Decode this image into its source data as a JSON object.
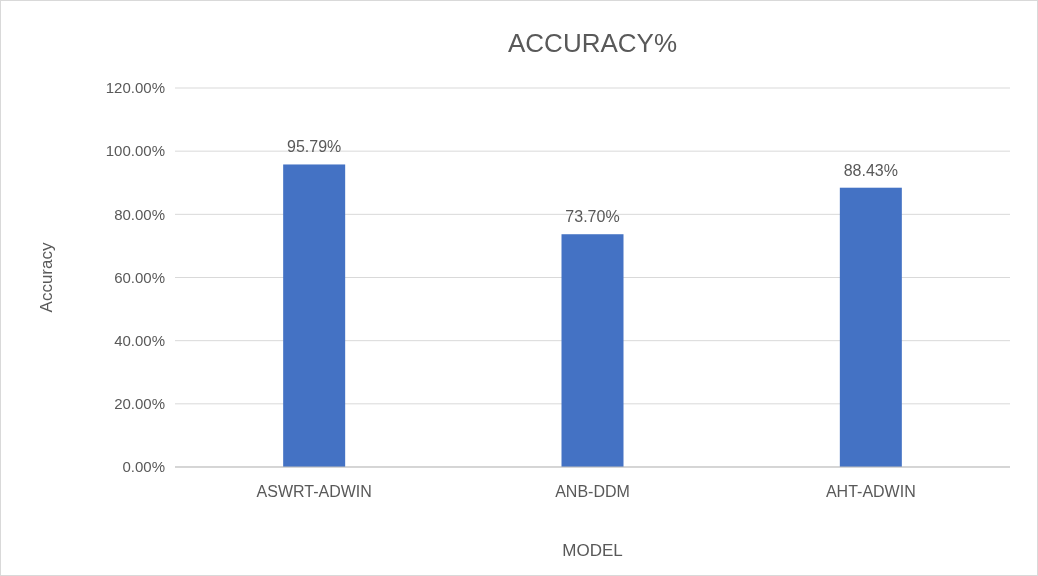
{
  "chart_data": {
    "type": "bar",
    "title": "ACCURACY%",
    "xlabel": "MODEL",
    "ylabel": "Accuracy",
    "categories": [
      "ASWRT-ADWIN",
      "ANB-DDM",
      "AHT-ADWIN"
    ],
    "values": [
      95.79,
      73.7,
      88.43
    ],
    "color": "#4472c4",
    "value_labels": [
      "95.79%",
      "73.70%",
      "88.43%"
    ],
    "ylim": [
      0,
      120
    ],
    "yticks": [
      {
        "value": 0,
        "label": "0.00%"
      },
      {
        "value": 20,
        "label": "20.00%"
      },
      {
        "value": 40,
        "label": "40.00%"
      },
      {
        "value": 60,
        "label": "60.00%"
      },
      {
        "value": 80,
        "label": "80.00%"
      },
      {
        "value": 100,
        "label": "100.00%"
      },
      {
        "value": 120,
        "label": "120.00%"
      }
    ],
    "grid": "y"
  }
}
